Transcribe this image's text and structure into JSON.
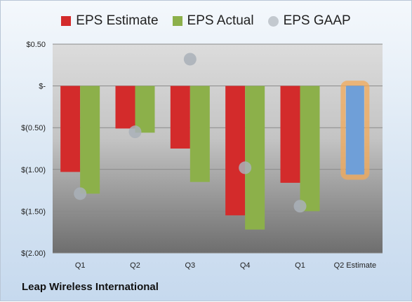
{
  "chart_data": {
    "type": "bar",
    "title": "",
    "xlabel": "",
    "ylabel": "",
    "ylim": [
      -2.0,
      0.5
    ],
    "y_ticks": [
      0.5,
      0,
      -0.5,
      -1.0,
      -1.5,
      -2.0
    ],
    "y_tick_labels": [
      "$0.50",
      "$-",
      "$(0.50)",
      "$(1.00)",
      "$(1.50)",
      "$(2.00)"
    ],
    "categories": [
      "Q1",
      "Q2",
      "Q3",
      "Q4",
      "Q1",
      "Q2 Estimate"
    ],
    "series": [
      {
        "name": "EPS Estimate",
        "kind": "bar",
        "color": "#d32b2b",
        "values": [
          -1.03,
          -0.51,
          -0.75,
          -1.55,
          -1.16,
          null
        ]
      },
      {
        "name": "EPS Actual",
        "kind": "bar",
        "color": "#8cb04a",
        "values": [
          -1.29,
          -0.56,
          -1.15,
          -1.72,
          -1.5,
          null
        ]
      },
      {
        "name": "EPS GAAP",
        "kind": "marker",
        "color": "#a9b0b8",
        "values": [
          -1.29,
          -0.55,
          0.32,
          -0.98,
          -1.44,
          null
        ]
      }
    ],
    "estimate": {
      "category": "Q2 Estimate",
      "value": -1.06,
      "color": "#6f9fd8",
      "highlight": "#f2a95a"
    },
    "grid": true,
    "legend_position": "top-center"
  },
  "footer": {
    "company": "Leap Wireless International"
  }
}
